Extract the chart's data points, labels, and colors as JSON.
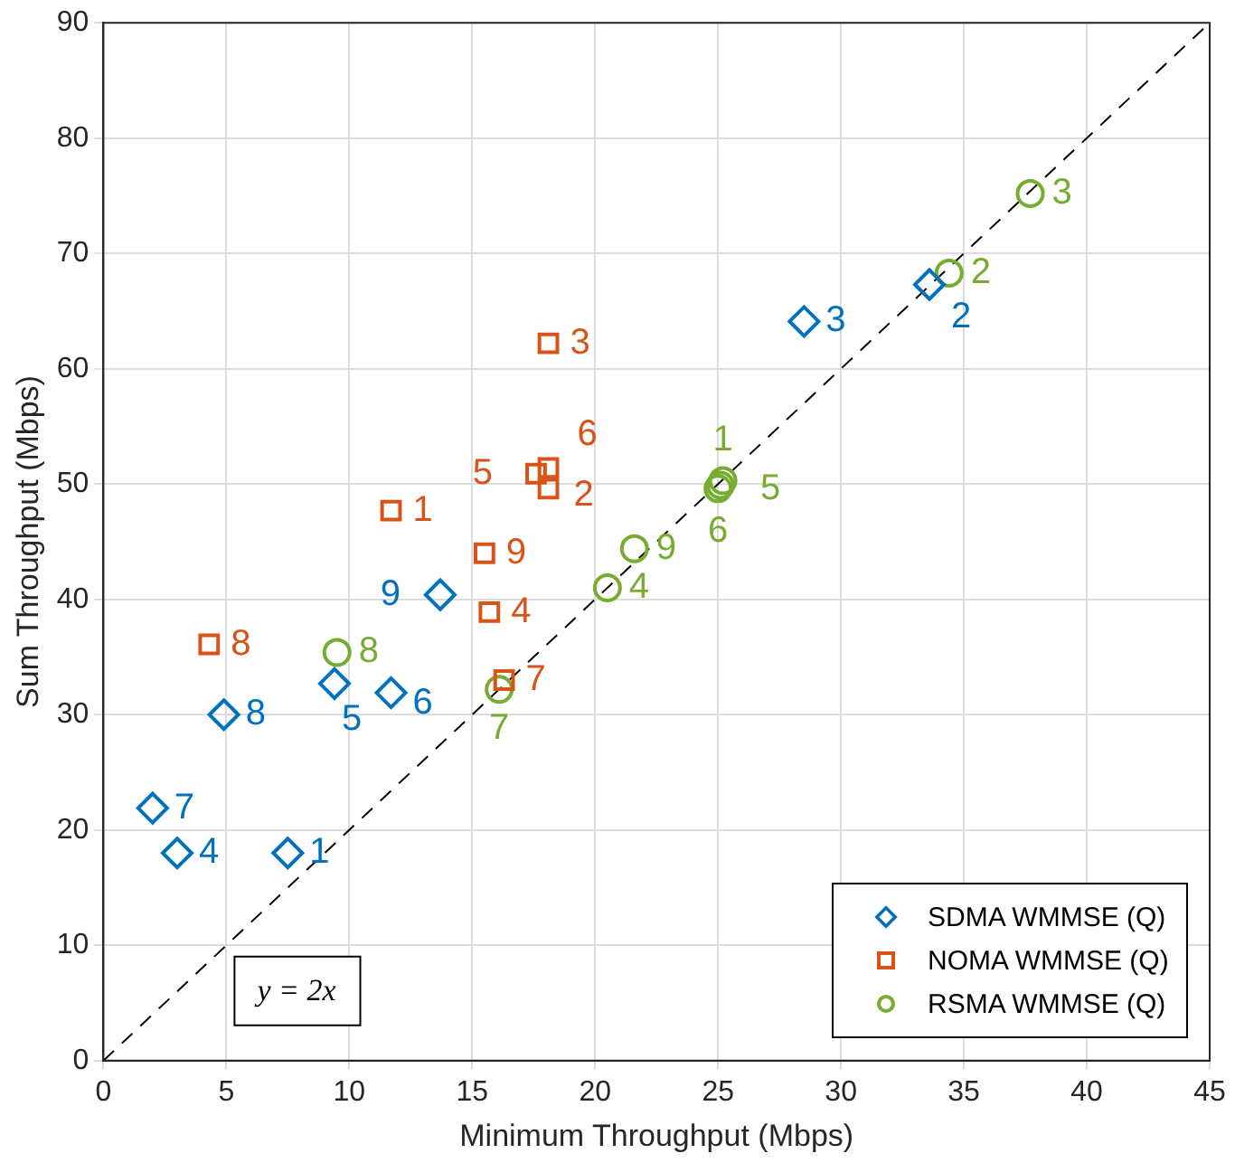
{
  "chart_data": {
    "type": "scatter",
    "xlabel": "Minimum Throughput (Mbps)",
    "ylabel": "Sum Throughput (Mbps)",
    "xlim": [
      0,
      45
    ],
    "xticks": [
      0,
      5,
      10,
      15,
      20,
      25,
      30,
      35,
      40,
      45
    ],
    "ylim": [
      0,
      90
    ],
    "yticks": [
      0,
      10,
      20,
      30,
      40,
      50,
      60,
      70,
      80,
      90
    ],
    "grid": true,
    "legend": "bottom right",
    "series": [
      {
        "name": "SDMA WMMSE (Q)",
        "color": "#0072bd",
        "marker": "diamond",
        "x": [
          7.5,
          33.6,
          28.5,
          3.0,
          9.4,
          11.7,
          2.0,
          4.9,
          13.7
        ],
        "values": [
          18.0,
          67.3,
          64.1,
          18.0,
          32.7,
          31.9,
          21.9,
          30.0,
          40.4
        ]
      },
      {
        "name": "NOMA WMMSE (Q)",
        "color": "#d95319",
        "marker": "square",
        "x": [
          11.7,
          18.1,
          18.1,
          15.7,
          17.6,
          18.1,
          16.3,
          4.3,
          15.5
        ],
        "values": [
          47.7,
          49.6,
          62.2,
          38.9,
          50.9,
          51.4,
          33.0,
          36.1,
          44.0
        ]
      },
      {
        "name": "RSMA WMMSE (Q)",
        "color": "#77ac30",
        "marker": "circle",
        "x": [
          25.2,
          34.4,
          37.7,
          20.5,
          25.1,
          25.0,
          16.1,
          9.5,
          21.6
        ],
        "values": [
          50.3,
          68.3,
          75.2,
          41.0,
          49.9,
          49.6,
          32.2,
          35.4,
          44.4
        ]
      },
      {
        "type": "line",
        "color": "#000000",
        "line_style": "dashed",
        "marker": "none",
        "x": [
          0,
          45
        ],
        "values": [
          0,
          90
        ]
      }
    ],
    "annotations": [
      "y = 2x",
      {
        "text": "1",
        "x": 7.5,
        "y": 18.0
      },
      {
        "text": "2",
        "x": 33.6,
        "y": 67.3
      },
      {
        "text": "3",
        "x": 28.5,
        "y": 64.1
      },
      {
        "text": "4",
        "x": 3.0,
        "y": 18.0
      },
      {
        "text": "5",
        "x": 9.4,
        "y": 32.7
      },
      {
        "text": "6",
        "x": 11.7,
        "y": 31.9
      },
      {
        "text": "7",
        "x": 2.0,
        "y": 21.9
      },
      {
        "text": "8",
        "x": 4.9,
        "y": 30.0
      },
      {
        "text": "9",
        "x": 13.7,
        "y": 40.4
      },
      {
        "text": "1",
        "x": 11.7,
        "y": 47.7
      },
      {
        "text": "2",
        "x": 18.1,
        "y": 49.6
      },
      {
        "text": "3",
        "x": 18.1,
        "y": 62.2
      },
      {
        "text": "4",
        "x": 15.7,
        "y": 38.9
      },
      {
        "text": "5",
        "x": 17.6,
        "y": 50.9
      },
      {
        "text": "6",
        "x": 18.1,
        "y": 51.4
      },
      {
        "text": "7",
        "x": 16.3,
        "y": 33.0
      },
      {
        "text": "8",
        "x": 4.3,
        "y": 36.1
      },
      {
        "text": "9",
        "x": 15.5,
        "y": 44.0
      },
      {
        "text": "1",
        "x": 25.2,
        "y": 50.3
      },
      {
        "text": "2",
        "x": 34.4,
        "y": 68.3
      },
      {
        "text": "3",
        "x": 37.7,
        "y": 75.2
      },
      {
        "text": "4",
        "x": 20.5,
        "y": 41.0
      },
      {
        "text": "5",
        "x": 25.1,
        "y": 49.9
      },
      {
        "text": "6",
        "x": 25.0,
        "y": 49.6
      },
      {
        "text": "7",
        "x": 16.1,
        "y": 32.2
      },
      {
        "text": "8",
        "x": 9.5,
        "y": 35.4
      },
      {
        "text": "9",
        "x": 21.6,
        "y": 44.4
      }
    ]
  }
}
